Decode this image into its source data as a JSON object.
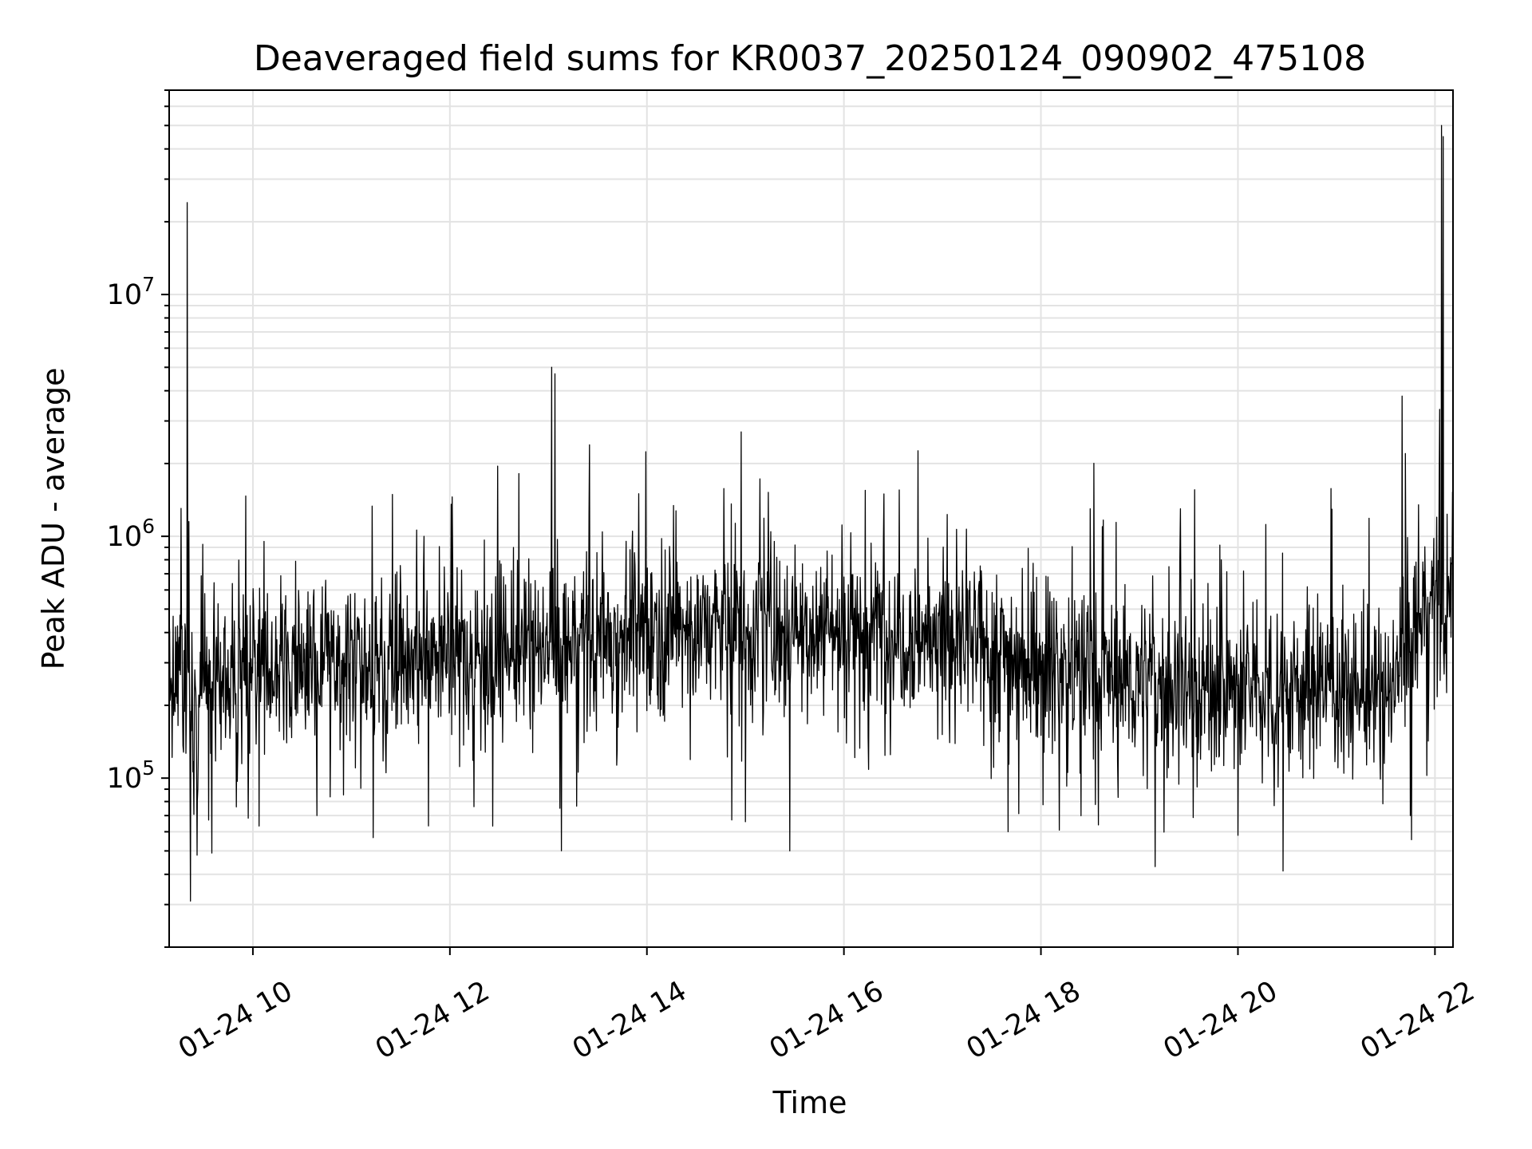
{
  "chart_data": {
    "type": "line",
    "title": "Deaveraged field sums for KR0037_20250124_090902_475108",
    "xlabel": "Time",
    "ylabel": "Peak ADU - average",
    "yscale": "log",
    "ylim": [
      20000,
      70000000
    ],
    "xlim": [
      "01-24 09:09",
      "01-24 22:11"
    ],
    "grid": true,
    "line_color": "#000000",
    "x_ticks": [
      {
        "label": "01-24 10",
        "hour": 10
      },
      {
        "label": "01-24 12",
        "hour": 12
      },
      {
        "label": "01-24 14",
        "hour": 14
      },
      {
        "label": "01-24 16",
        "hour": 16
      },
      {
        "label": "01-24 18",
        "hour": 18
      },
      {
        "label": "01-24 20",
        "hour": 20
      },
      {
        "label": "01-24 22",
        "hour": 22
      }
    ],
    "y_ticks": [
      {
        "base": "10",
        "exp": "5",
        "value": 100000
      },
      {
        "base": "10",
        "exp": "6",
        "value": 1000000
      },
      {
        "base": "10",
        "exp": "7",
        "value": 10000000
      }
    ],
    "baseline_trend": [
      {
        "time": "01-24 09:10",
        "value": 250000
      },
      {
        "time": "01-24 09:30",
        "value": 220000
      },
      {
        "time": "01-24 10:00",
        "value": 300000
      },
      {
        "time": "01-24 11:00",
        "value": 300000
      },
      {
        "time": "01-24 12:00",
        "value": 330000
      },
      {
        "time": "01-24 13:00",
        "value": 330000
      },
      {
        "time": "01-24 14:00",
        "value": 420000
      },
      {
        "time": "01-24 15:00",
        "value": 420000
      },
      {
        "time": "01-24 16:00",
        "value": 430000
      },
      {
        "time": "01-24 17:00",
        "value": 380000
      },
      {
        "time": "01-24 18:00",
        "value": 300000
      },
      {
        "time": "01-24 19:00",
        "value": 250000
      },
      {
        "time": "01-24 20:00",
        "value": 230000
      },
      {
        "time": "01-24 21:00",
        "value": 250000
      },
      {
        "time": "01-24 21:30",
        "value": 200000
      },
      {
        "time": "01-24 21:50",
        "value": 450000
      },
      {
        "time": "01-24 22:10",
        "value": 550000
      }
    ],
    "spikes": [
      {
        "time": "01-24 09:20",
        "value": 24000000
      },
      {
        "time": "01-24 09:21",
        "value": 1150000
      },
      {
        "time": "01-24 09:22",
        "value": 31000
      },
      {
        "time": "01-24 09:26",
        "value": 48000
      },
      {
        "time": "01-24 09:35",
        "value": 49000
      },
      {
        "time": "01-24 10:39",
        "value": 70000
      },
      {
        "time": "01-24 13:02",
        "value": 5000000
      },
      {
        "time": "01-24 13:04",
        "value": 4700000
      },
      {
        "time": "01-24 13:07",
        "value": 75000
      },
      {
        "time": "01-24 13:55",
        "value": 1500000
      },
      {
        "time": "01-24 15:00",
        "value": 66000
      },
      {
        "time": "01-24 15:27",
        "value": 50000
      },
      {
        "time": "01-24 16:13",
        "value": 1550000
      },
      {
        "time": "01-24 17:40",
        "value": 60000
      },
      {
        "time": "01-24 18:30",
        "value": 1300000
      },
      {
        "time": "01-24 18:35",
        "value": 64000
      },
      {
        "time": "01-24 19:25",
        "value": 1300000
      },
      {
        "time": "01-24 20:00",
        "value": 58000
      },
      {
        "time": "01-24 21:40",
        "value": 3800000
      },
      {
        "time": "01-24 21:42",
        "value": 2200000
      },
      {
        "time": "01-24 21:45",
        "value": 70000
      },
      {
        "time": "01-24 21:50",
        "value": 1350000
      },
      {
        "time": "01-24 22:04",
        "value": 50000000
      },
      {
        "time": "01-24 22:05",
        "value": 45000000
      }
    ]
  }
}
